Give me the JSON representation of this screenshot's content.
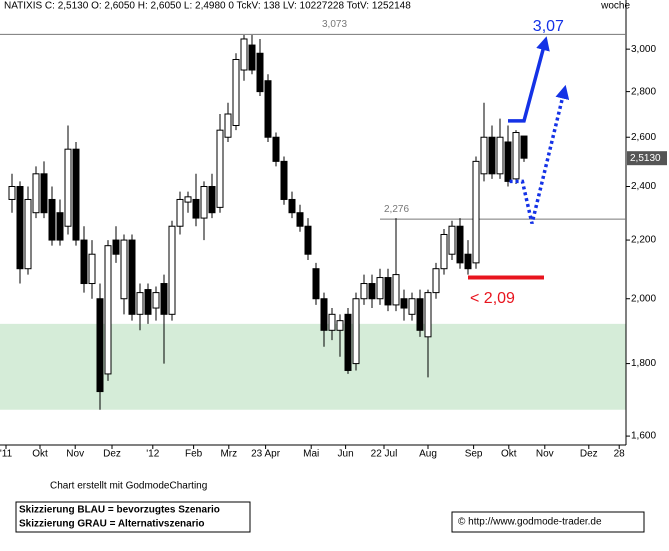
{
  "chart_data": {
    "type": "candlestick",
    "title": "NATIXIS C: 2,5130 O: 2,6050 H: 2,6050 L: 2,4980 0 TckV: 138 LV: 10227228 TotV: 1252148",
    "period": "woche",
    "log_scale": true,
    "ylim": [
      1.577,
      3.197
    ],
    "yticks": [
      {
        "value": 1.6,
        "label": "1,600"
      },
      {
        "value": 1.8,
        "label": "1,800"
      },
      {
        "value": 2.0,
        "label": "2,000"
      },
      {
        "value": 2.2,
        "label": "2,200"
      },
      {
        "value": 2.4,
        "label": "2,400"
      },
      {
        "value": 2.6,
        "label": "2,600"
      },
      {
        "value": 2.8,
        "label": "2,800"
      },
      {
        "value": 3.0,
        "label": "3,000"
      }
    ],
    "xlim": [
      -1.5,
      76.75
    ],
    "xticks": [
      {
        "value": -0.75,
        "label": "'11"
      },
      {
        "value": 3.5,
        "label": "Okt"
      },
      {
        "value": 7.9,
        "label": "Nov"
      },
      {
        "value": 12.5,
        "label": "Dez"
      },
      {
        "value": 17.6,
        "label": "'12"
      },
      {
        "value": 22.7,
        "label": "Feb"
      },
      {
        "value": 27.1,
        "label": "Mrz"
      },
      {
        "value": 31.7,
        "label": "23 Apr"
      },
      {
        "value": 37.4,
        "label": "Mai"
      },
      {
        "value": 41.7,
        "label": "Jun"
      },
      {
        "value": 46.5,
        "label": "22 Jul"
      },
      {
        "value": 52,
        "label": "Aug"
      },
      {
        "value": 57.7,
        "label": "Sep"
      },
      {
        "value": 62.1,
        "label": "Okt"
      },
      {
        "value": 66.6,
        "label": "Nov"
      },
      {
        "value": 72.1,
        "label": "Dez"
      },
      {
        "value": 75.9,
        "label": "28"
      }
    ],
    "candles": {
      "open": [
        2.35,
        2.4,
        2.1,
        2.3,
        2.45,
        2.35,
        2.3,
        2.25,
        2.55,
        2.2,
        2.05,
        2.0,
        1.77,
        2.2,
        2.0,
        2.2,
        1.95,
        2.03,
        1.97,
        2.05,
        1.95,
        2.25,
        2.34,
        2.35,
        2.28,
        2.4,
        2.32,
        2.6,
        2.65,
        2.9,
        3.02,
        2.98,
        2.85,
        2.6,
        2.5,
        2.35,
        2.3,
        2.25,
        2.1,
        2.0,
        1.9,
        1.9,
        1.95,
        1.8,
        2.0,
        2.05,
        2.0,
        2.07,
        1.98,
        2.0,
        1.95,
        2.0,
        1.88,
        2.02,
        2.1,
        2.15,
        2.25,
        2.15,
        2.12,
        2.45,
        2.6,
        2.45,
        2.58,
        2.43,
        2.605
      ],
      "high": [
        2.45,
        2.42,
        2.4,
        2.48,
        2.5,
        2.4,
        2.35,
        2.65,
        2.58,
        2.25,
        2.2,
        2.05,
        2.2,
        2.25,
        2.22,
        2.22,
        2.05,
        2.05,
        2.04,
        2.08,
        2.27,
        2.38,
        2.38,
        2.45,
        2.42,
        2.45,
        2.7,
        2.75,
        2.98,
        3.07,
        3.07,
        3.05,
        2.88,
        2.62,
        2.52,
        2.38,
        2.33,
        2.28,
        2.12,
        2.02,
        1.97,
        1.95,
        1.97,
        2.02,
        2.08,
        2.08,
        2.1,
        2.1,
        2.28,
        2.03,
        2.02,
        2.03,
        2.03,
        2.12,
        2.24,
        2.27,
        2.28,
        2.2,
        2.52,
        2.75,
        2.65,
        2.68,
        2.65,
        2.63,
        2.605
      ],
      "low": [
        2.3,
        2.05,
        2.08,
        2.28,
        2.28,
        2.18,
        2.18,
        2.22,
        2.18,
        2.02,
        2.0,
        1.67,
        1.75,
        2.12,
        1.95,
        1.93,
        1.9,
        1.92,
        1.93,
        1.8,
        1.93,
        2.22,
        2.3,
        2.25,
        2.2,
        2.28,
        2.3,
        2.58,
        2.63,
        2.85,
        2.88,
        2.78,
        2.58,
        2.48,
        2.33,
        2.28,
        2.23,
        2.13,
        1.98,
        1.85,
        1.87,
        1.82,
        1.77,
        1.78,
        1.98,
        1.97,
        1.98,
        1.96,
        1.96,
        1.93,
        1.93,
        1.88,
        1.76,
        2.0,
        2.08,
        2.13,
        2.1,
        2.08,
        2.1,
        2.42,
        2.43,
        2.43,
        2.4,
        2.41,
        2.498
      ],
      "close": [
        2.4,
        2.1,
        2.35,
        2.45,
        2.3,
        2.2,
        2.2,
        2.55,
        2.2,
        2.05,
        2.15,
        1.72,
        2.18,
        2.15,
        2.2,
        1.95,
        2.02,
        1.95,
        2.02,
        1.95,
        2.25,
        2.35,
        2.36,
        2.28,
        2.4,
        2.3,
        2.63,
        2.7,
        2.95,
        3.05,
        2.9,
        2.8,
        2.6,
        2.5,
        2.35,
        2.3,
        2.25,
        2.15,
        2.0,
        1.9,
        1.95,
        1.93,
        1.78,
        2.0,
        2.05,
        2.0,
        2.07,
        1.98,
        2.08,
        1.97,
        2.0,
        1.9,
        2.02,
        2.1,
        2.22,
        2.25,
        2.12,
        2.1,
        2.5,
        2.6,
        2.45,
        2.6,
        2.42,
        2.62,
        2.513
      ]
    },
    "last_price": {
      "value": 2.513,
      "label": "2,5130"
    },
    "levels": [
      {
        "value": 3.073,
        "label": "3,073",
        "from": -1.5
      },
      {
        "value": 2.276,
        "label": "2,276",
        "from": 46
      }
    ],
    "zone": [
      1.67,
      1.92
    ],
    "support": {
      "value": 2.07,
      "label": "< 2,09",
      "from": 57,
      "to": 66.5
    },
    "arrow_solid": {
      "label": "3,07",
      "points": [
        [
          62,
          2.67
        ],
        [
          64,
          2.67
        ],
        [
          66.6,
          3.03
        ]
      ]
    },
    "arrow_dotted": {
      "points": [
        [
          62.2,
          2.42
        ],
        [
          63.8,
          2.42
        ],
        [
          65,
          2.26
        ],
        [
          69,
          2.8
        ]
      ]
    },
    "credit": "Chart erstellt mit GodmodeCharting",
    "legend_lines": [
      "Skizzierung BLAU = bevorzugtes Szenario",
      "Skizzierung GRAU = Alternativszenario"
    ],
    "copyright": "© http://www.godmode-trader.de"
  }
}
